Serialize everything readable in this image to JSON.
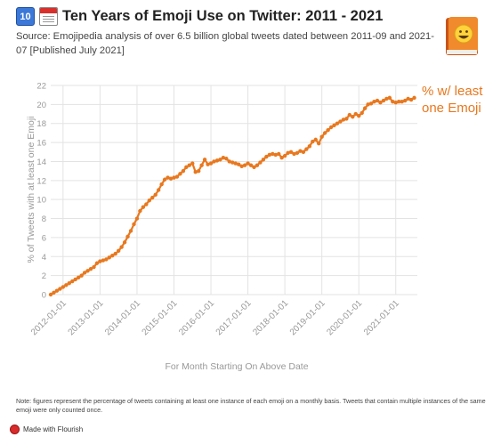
{
  "header": {
    "badge": "10",
    "title": "Ten Years of Emoji Use on Twitter: 2011 - 2021",
    "subtitle": "Source: Emojipedia analysis of over 6.5 billion global tweets dated between 2011-09 and 2021-07 [Published July 2021]"
  },
  "chart_data": {
    "type": "line",
    "title": "",
    "xlabel": "For Month Starting On Above Date",
    "ylabel": "% of Tweets with at least one Emoji",
    "ylim": [
      0,
      22
    ],
    "yticks": [
      0,
      2,
      4,
      6,
      8,
      10,
      12,
      14,
      16,
      18,
      20,
      22
    ],
    "xticks": [
      "2012-01-01",
      "2013-01-01",
      "2014-01-01",
      "2015-01-01",
      "2016-01-01",
      "2017-01-01",
      "2018-01-01",
      "2019-01-01",
      "2020-01-01",
      "2021-01-01"
    ],
    "grid": true,
    "series_label": "% w/ least one Emoji",
    "series": [
      {
        "color": "#e8781f",
        "points": [
          [
            "2011-09-01",
            0.0
          ],
          [
            "2011-10-01",
            0.2
          ],
          [
            "2011-11-01",
            0.4
          ],
          [
            "2011-12-01",
            0.6
          ],
          [
            "2012-01-01",
            0.8
          ],
          [
            "2012-02-01",
            1.0
          ],
          [
            "2012-03-01",
            1.2
          ],
          [
            "2012-04-01",
            1.4
          ],
          [
            "2012-05-01",
            1.6
          ],
          [
            "2012-06-01",
            1.8
          ],
          [
            "2012-07-01",
            2.0
          ],
          [
            "2012-08-01",
            2.3
          ],
          [
            "2012-09-01",
            2.5
          ],
          [
            "2012-10-01",
            2.7
          ],
          [
            "2012-11-01",
            2.9
          ],
          [
            "2012-12-01",
            3.3
          ],
          [
            "2013-01-01",
            3.5
          ],
          [
            "2013-02-01",
            3.6
          ],
          [
            "2013-03-01",
            3.7
          ],
          [
            "2013-04-01",
            3.9
          ],
          [
            "2013-05-01",
            4.1
          ],
          [
            "2013-06-01",
            4.3
          ],
          [
            "2013-07-01",
            4.6
          ],
          [
            "2013-08-01",
            5.0
          ],
          [
            "2013-09-01",
            5.5
          ],
          [
            "2013-10-01",
            6.1
          ],
          [
            "2013-11-01",
            6.7
          ],
          [
            "2013-12-01",
            7.4
          ],
          [
            "2014-01-01",
            8.0
          ],
          [
            "2014-02-01",
            8.8
          ],
          [
            "2014-03-01",
            9.2
          ],
          [
            "2014-04-01",
            9.5
          ],
          [
            "2014-05-01",
            9.9
          ],
          [
            "2014-06-01",
            10.2
          ],
          [
            "2014-07-01",
            10.5
          ],
          [
            "2014-08-01",
            11.0
          ],
          [
            "2014-09-01",
            11.6
          ],
          [
            "2014-10-01",
            12.1
          ],
          [
            "2014-11-01",
            12.3
          ],
          [
            "2014-12-01",
            12.2
          ],
          [
            "2015-01-01",
            12.3
          ],
          [
            "2015-02-01",
            12.4
          ],
          [
            "2015-03-01",
            12.7
          ],
          [
            "2015-04-01",
            13.0
          ],
          [
            "2015-05-01",
            13.4
          ],
          [
            "2015-06-01",
            13.6
          ],
          [
            "2015-07-01",
            13.8
          ],
          [
            "2015-08-01",
            12.9
          ],
          [
            "2015-09-01",
            13.0
          ],
          [
            "2015-10-01",
            13.6
          ],
          [
            "2015-11-01",
            14.2
          ],
          [
            "2015-12-01",
            13.7
          ],
          [
            "2016-01-01",
            13.8
          ],
          [
            "2016-02-01",
            14.0
          ],
          [
            "2016-03-01",
            14.1
          ],
          [
            "2016-04-01",
            14.2
          ],
          [
            "2016-05-01",
            14.4
          ],
          [
            "2016-06-01",
            14.3
          ],
          [
            "2016-07-01",
            14.0
          ],
          [
            "2016-08-01",
            13.9
          ],
          [
            "2016-09-01",
            13.8
          ],
          [
            "2016-10-01",
            13.7
          ],
          [
            "2016-11-01",
            13.5
          ],
          [
            "2016-12-01",
            13.6
          ],
          [
            "2017-01-01",
            13.8
          ],
          [
            "2017-02-01",
            13.6
          ],
          [
            "2017-03-01",
            13.4
          ],
          [
            "2017-04-01",
            13.6
          ],
          [
            "2017-05-01",
            13.9
          ],
          [
            "2017-06-01",
            14.2
          ],
          [
            "2017-07-01",
            14.5
          ],
          [
            "2017-08-01",
            14.7
          ],
          [
            "2017-09-01",
            14.8
          ],
          [
            "2017-10-01",
            14.7
          ],
          [
            "2017-11-01",
            14.8
          ],
          [
            "2017-12-01",
            14.4
          ],
          [
            "2018-01-01",
            14.6
          ],
          [
            "2018-02-01",
            14.9
          ],
          [
            "2018-03-01",
            15.0
          ],
          [
            "2018-04-01",
            14.8
          ],
          [
            "2018-05-01",
            14.9
          ],
          [
            "2018-06-01",
            15.1
          ],
          [
            "2018-07-01",
            15.0
          ],
          [
            "2018-08-01",
            15.3
          ],
          [
            "2018-09-01",
            15.6
          ],
          [
            "2018-10-01",
            16.1
          ],
          [
            "2018-11-01",
            16.3
          ],
          [
            "2018-12-01",
            15.9
          ],
          [
            "2019-01-01",
            16.6
          ],
          [
            "2019-02-01",
            17.0
          ],
          [
            "2019-03-01",
            17.3
          ],
          [
            "2019-04-01",
            17.6
          ],
          [
            "2019-05-01",
            17.8
          ],
          [
            "2019-06-01",
            18.0
          ],
          [
            "2019-07-01",
            18.2
          ],
          [
            "2019-08-01",
            18.4
          ],
          [
            "2019-09-01",
            18.5
          ],
          [
            "2019-10-01",
            18.9
          ],
          [
            "2019-11-01",
            18.7
          ],
          [
            "2019-12-01",
            19.0
          ],
          [
            "2020-01-01",
            18.8
          ],
          [
            "2020-02-01",
            19.1
          ],
          [
            "2020-03-01",
            19.6
          ],
          [
            "2020-04-01",
            20.0
          ],
          [
            "2020-05-01",
            20.1
          ],
          [
            "2020-06-01",
            20.3
          ],
          [
            "2020-07-01",
            20.4
          ],
          [
            "2020-08-01",
            20.2
          ],
          [
            "2020-09-01",
            20.4
          ],
          [
            "2020-10-01",
            20.6
          ],
          [
            "2020-11-01",
            20.7
          ],
          [
            "2020-12-01",
            20.3
          ],
          [
            "2021-01-01",
            20.2
          ],
          [
            "2021-02-01",
            20.3
          ],
          [
            "2021-03-01",
            20.3
          ],
          [
            "2021-04-01",
            20.4
          ],
          [
            "2021-05-01",
            20.6
          ],
          [
            "2021-06-01",
            20.5
          ],
          [
            "2021-07-01",
            20.7
          ]
        ]
      }
    ]
  },
  "footnote": "Note: figures represent the percentage of tweets containing at least one instance of each emoji on a monthly basis. Tweets that contain multiple instances of the same emoji were only counted once.",
  "credit": "Made with Flourish"
}
